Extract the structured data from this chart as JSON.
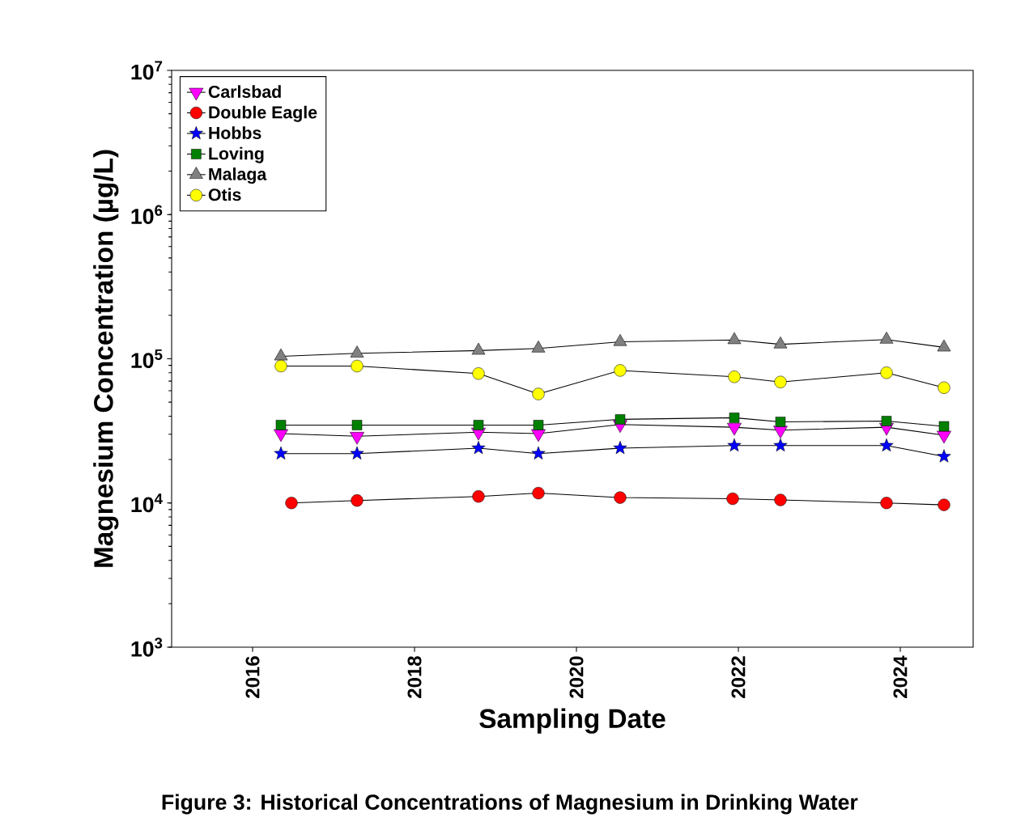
{
  "chart_data": {
    "type": "line",
    "xlabel": "Sampling Date",
    "ylabel": "Magnesium Concentration (µg/L)",
    "annotations": [
      "Figure 3: Historical Concentrations of Magnesium in Drinking Water"
    ],
    "log": "y",
    "legend": "top left",
    "grid": false,
    "xlim": [
      2015,
      2024.9
    ],
    "xticks": [
      2016,
      2018,
      2020,
      2022,
      2024
    ],
    "ylim": [
      1000,
      10000000
    ],
    "yticks": [
      {
        "value": 1000,
        "label": "10$^{3}$"
      },
      {
        "value": 10000,
        "label": "10$^{4}$"
      },
      {
        "value": 100000,
        "label": "10$^{5}$"
      },
      {
        "value": 1000000,
        "label": "10$^{6}$"
      },
      {
        "value": 10000000,
        "label": "10$^{7}$"
      }
    ],
    "x": [
      2016.35,
      2017.29,
      2018.79,
      2019.53,
      2020.54,
      2021.95,
      2022.52,
      2023.83,
      2024.54
    ],
    "series": [
      {
        "name": "Carlsbad",
        "color": "#ff00ff",
        "marker": "triangle-down",
        "values": [
          30300,
          29000,
          31000,
          30300,
          35000,
          33500,
          32000,
          33500,
          29500
        ]
      },
      {
        "name": "Double Eagle",
        "color": "#ff0000",
        "marker": "circle",
        "x": [
          2016.48,
          2017.29,
          2018.79,
          2019.53,
          2020.54,
          2021.93,
          2022.52,
          2023.83,
          2024.54
        ],
        "values": [
          10000,
          10400,
          11100,
          11700,
          10900,
          10700,
          10500,
          10000,
          9700
        ]
      },
      {
        "name": "Hobbs",
        "color": "#0000ff",
        "marker": "star",
        "values": [
          22000,
          22000,
          24000,
          22000,
          24000,
          25000,
          25000,
          25000,
          21000
        ]
      },
      {
        "name": "Loving",
        "color": "#008000",
        "marker": "square",
        "values": [
          34700,
          34700,
          34700,
          34700,
          38000,
          39000,
          36500,
          37000,
          34000
        ]
      },
      {
        "name": "Malaga",
        "color": "#808080",
        "marker": "triangle",
        "values": [
          104000,
          109000,
          114000,
          118000,
          131000,
          135000,
          126000,
          136000,
          120000
        ]
      },
      {
        "name": "Otis",
        "color": "#ffff00",
        "marker": "circle",
        "values": [
          89000,
          89000,
          79000,
          57000,
          83000,
          75000,
          69000,
          80000,
          63000
        ]
      }
    ]
  }
}
